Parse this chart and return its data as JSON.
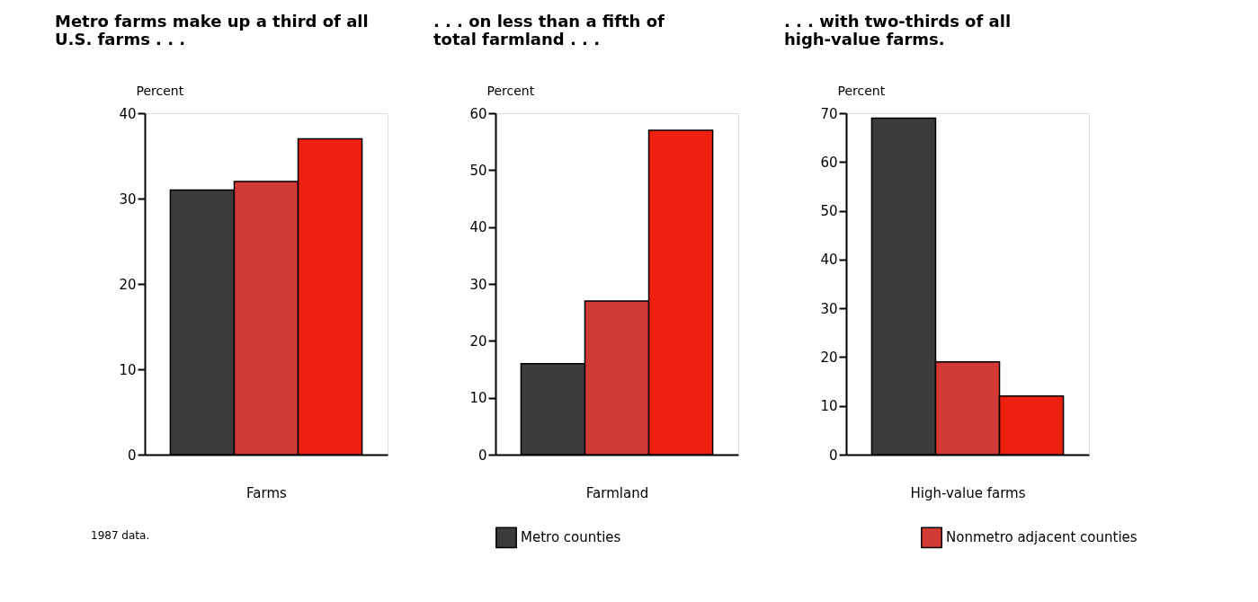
{
  "chart_data": [
    {
      "type": "bar",
      "title": "Metro farms make up a third of all U.S. farms . . .",
      "xlabel": "Farms",
      "ylabel": "Percent",
      "categories": [
        null,
        null,
        null
      ],
      "ylim": [
        0,
        40
      ],
      "yticks": [
        0,
        10,
        20,
        30,
        40
      ],
      "grid": false,
      "annotations": [
        "1987 data."
      ],
      "series": [
        {
          "color": "#3d3b3b",
          "values": [
            31,
            null,
            null
          ]
        },
        {
          "color": "#d23a35",
          "values": [
            null,
            32,
            null
          ]
        },
        {
          "color": "#ee2010",
          "values": [
            null,
            null,
            37
          ]
        }
      ]
    },
    {
      "type": "bar",
      "title": ". . . on less than a fifth of total farmland . . .",
      "xlabel": "Farmland",
      "ylabel": "Percent",
      "categories": [
        null,
        null,
        null
      ],
      "ylim": [
        0,
        60
      ],
      "yticks": [
        0,
        10,
        20,
        30,
        40,
        50,
        60
      ],
      "grid": false,
      "legend": "bottom",
      "series": [
        {
          "name": "Metro counties",
          "color": "#3d3b3b",
          "values": [
            16,
            null,
            null
          ]
        },
        {
          "name": "Nonmetro adjacent counties",
          "color": "#d23a35",
          "values": [
            null,
            27,
            null
          ]
        },
        {
          "color": "#ee2010",
          "values": [
            null,
            null,
            57
          ]
        }
      ]
    },
    {
      "type": "bar",
      "title": ". . . with two-thirds of all high-value farms.",
      "xlabel": "High-value farms",
      "ylabel": "Percent",
      "categories": [
        null,
        null,
        null
      ],
      "ylim": [
        0,
        70
      ],
      "yticks": [
        0,
        10,
        20,
        30,
        40,
        50,
        60,
        70
      ],
      "grid": false,
      "series": [
        {
          "color": "#3d3b3b",
          "values": [
            69,
            null,
            null
          ]
        },
        {
          "color": "#d23a35",
          "values": [
            null,
            19,
            null
          ]
        },
        {
          "color": "#ee2010",
          "values": [
            null,
            null,
            12
          ]
        }
      ]
    }
  ]
}
